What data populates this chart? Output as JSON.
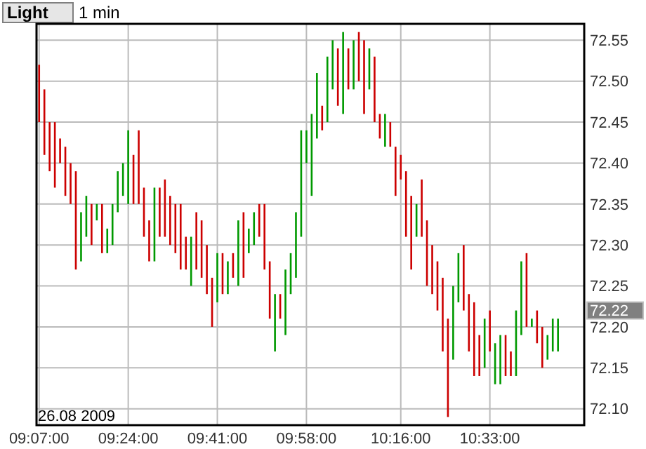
{
  "chart_data": {
    "type": "bar",
    "title": "Light",
    "subtitle": "1 min",
    "categories": [
      "09:07:00",
      null,
      null,
      null,
      null,
      null,
      null,
      null,
      null,
      null,
      null,
      null,
      null,
      null,
      null,
      null,
      null,
      "09:24:00",
      null,
      null,
      null,
      null,
      null,
      null,
      null,
      null,
      null,
      null,
      null,
      null,
      null,
      null,
      null,
      null,
      "09:41:00",
      null,
      null,
      null,
      null,
      null,
      null,
      null,
      null,
      null,
      null,
      null,
      null,
      null,
      null,
      null,
      null,
      "09:58:00",
      null,
      null,
      null,
      null,
      null,
      null,
      null,
      null,
      null,
      null,
      null,
      null,
      null,
      null,
      null,
      null,
      null,
      "10:16:00",
      null,
      null,
      null,
      null,
      null,
      null,
      null,
      null,
      null,
      null,
      null,
      null,
      null,
      null,
      null,
      null,
      "10:33:00",
      null,
      null,
      null,
      null,
      null,
      null,
      null,
      null,
      null,
      null,
      null,
      null,
      null
    ],
    "base": [
      72.45,
      72.41,
      72.39,
      72.37,
      72.4,
      72.36,
      72.35,
      72.27,
      72.28,
      72.31,
      72.3,
      72.33,
      72.29,
      72.29,
      72.3,
      72.34,
      72.36,
      72.35,
      72.35,
      72.35,
      72.31,
      72.28,
      72.28,
      72.31,
      72.31,
      72.3,
      72.29,
      72.27,
      72.27,
      72.25,
      72.27,
      72.26,
      72.24,
      72.2,
      72.23,
      72.24,
      72.24,
      72.26,
      72.25,
      72.26,
      72.29,
      72.3,
      72.31,
      72.27,
      72.21,
      72.17,
      72.21,
      72.19,
      72.24,
      72.26,
      72.31,
      72.4,
      72.36,
      72.43,
      72.44,
      72.45,
      72.49,
      72.47,
      72.46,
      72.49,
      72.49,
      72.5,
      72.46,
      72.49,
      72.45,
      72.43,
      72.42,
      72.42,
      72.36,
      72.38,
      72.31,
      72.27,
      72.31,
      72.31,
      72.25,
      72.24,
      72.22,
      72.17,
      72.09,
      72.16,
      72.23,
      72.22,
      72.17,
      72.14,
      72.14,
      72.15,
      72.17,
      72.13,
      72.13,
      72.14,
      72.14,
      72.14,
      72.19,
      72.2,
      72.2,
      72.18,
      72.15,
      72.16,
      72.17,
      72.17
    ],
    "values": [
      0.07,
      0.08,
      0.06,
      0.08,
      0.03,
      0.06,
      0.05,
      0.12,
      0.06,
      0.05,
      0.05,
      0.02,
      0.06,
      0.03,
      0.05,
      0.05,
      0.04,
      0.09,
      0.06,
      0.09,
      0.06,
      0.05,
      0.09,
      0.06,
      0.07,
      0.06,
      0.06,
      0.08,
      0.04,
      0.06,
      0.07,
      0.07,
      0.06,
      0.06,
      0.06,
      0.05,
      0.04,
      0.03,
      0.08,
      0.08,
      0.03,
      0.04,
      0.04,
      0.08,
      0.07,
      0.07,
      0.03,
      0.08,
      0.05,
      0.08,
      0.13,
      0.04,
      0.1,
      0.08,
      0.03,
      0.08,
      0.06,
      0.07,
      0.1,
      0.05,
      0.06,
      0.06,
      0.09,
      0.05,
      0.08,
      0.03,
      0.04,
      0.03,
      0.06,
      0.03,
      0.08,
      0.09,
      0.04,
      0.07,
      0.08,
      0.06,
      0.06,
      0.09,
      0.12,
      0.09,
      0.06,
      0.08,
      0.07,
      0.09,
      0.05,
      0.06,
      0.05,
      0.05,
      0.06,
      0.05,
      0.03,
      0.08,
      0.09,
      0.09,
      0.01,
      0.04,
      0.05,
      0.03,
      0.04,
      0.04
    ],
    "colors": [
      "#cc0000",
      "#cc0000",
      "#cc0000",
      "#cc0000",
      "#cc0000",
      "#cc0000",
      "#cc0000",
      "#cc0000",
      "#009900",
      "#009900",
      "#cc0000",
      "#009900",
      "#cc0000",
      "#009900",
      "#009900",
      "#009900",
      "#009900",
      "#009900",
      "#cc0000",
      "#cc0000",
      "#cc0000",
      "#cc0000",
      "#009900",
      "#cc0000",
      "#cc0000",
      "#cc0000",
      "#cc0000",
      "#cc0000",
      "#cc0000",
      "#009900",
      "#cc0000",
      "#cc0000",
      "#cc0000",
      "#cc0000",
      "#009900",
      "#cc0000",
      "#009900",
      "#cc0000",
      "#009900",
      "#cc0000",
      "#009900",
      "#009900",
      "#cc0000",
      "#cc0000",
      "#cc0000",
      "#009900",
      "#cc0000",
      "#009900",
      "#009900",
      "#009900",
      "#009900",
      "#009900",
      "#009900",
      "#009900",
      "#cc0000",
      "#009900",
      "#009900",
      "#cc0000",
      "#009900",
      "#cc0000",
      "#009900",
      "#cc0000",
      "#cc0000",
      "#009900",
      "#cc0000",
      "#cc0000",
      "#009900",
      "#cc0000",
      "#cc0000",
      "#cc0000",
      "#cc0000",
      "#cc0000",
      "#009900",
      "#cc0000",
      "#cc0000",
      "#cc0000",
      "#cc0000",
      "#cc0000",
      "#cc0000",
      "#009900",
      "#009900",
      "#cc0000",
      "#cc0000",
      "#cc0000",
      "#cc0000",
      "#009900",
      "#cc0000",
      "#009900",
      "#009900",
      "#cc0000",
      "#cc0000",
      "#009900",
      "#009900",
      "#cc0000",
      "#009900",
      "#cc0000",
      "#cc0000",
      "#009900",
      "#009900",
      "#009900"
    ],
    "ylim": [
      72.08,
      72.57
    ],
    "yticks": [
      {
        "value": 72.1,
        "label": "72.10"
      },
      72.15,
      {
        "value": 72.2,
        "label": "72.20"
      },
      72.25,
      {
        "value": 72.3,
        "label": "72.30"
      },
      72.35,
      {
        "value": 72.4,
        "label": "72.40"
      },
      72.45,
      {
        "value": 72.5,
        "label": "72.50"
      },
      72.55
    ],
    "grid": true,
    "annotations": [
      "26.08 2009",
      "72.22"
    ]
  }
}
